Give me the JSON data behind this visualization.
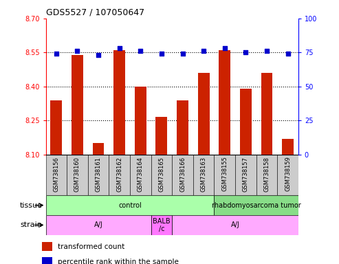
{
  "title": "GDS5527 / 107050647",
  "samples": [
    "GSM738156",
    "GSM738160",
    "GSM738161",
    "GSM738162",
    "GSM738164",
    "GSM738165",
    "GSM738166",
    "GSM738163",
    "GSM738155",
    "GSM738157",
    "GSM738158",
    "GSM738159"
  ],
  "bar_values": [
    8.34,
    8.54,
    8.15,
    8.56,
    8.4,
    8.265,
    8.34,
    8.46,
    8.56,
    8.39,
    8.46,
    8.17
  ],
  "dot_values": [
    74,
    76,
    73,
    78,
    76,
    74,
    74,
    76,
    78,
    75,
    76,
    74
  ],
  "ymin": 8.1,
  "ymax": 8.7,
  "y2min": 0,
  "y2max": 100,
  "yticks": [
    8.1,
    8.25,
    8.4,
    8.55,
    8.7
  ],
  "y2ticks": [
    0,
    25,
    50,
    75,
    100
  ],
  "bar_color": "#cc2200",
  "dot_color": "#0000cc",
  "bar_width": 0.55,
  "tissue_groups": [
    {
      "label": "control",
      "start": 0,
      "end": 8,
      "color": "#aaffaa"
    },
    {
      "label": "rhabdomyosarcoma tumor",
      "start": 8,
      "end": 12,
      "color": "#88dd88"
    }
  ],
  "strain_groups": [
    {
      "label": "A/J",
      "start": 0,
      "end": 5,
      "color": "#ffaaff"
    },
    {
      "label": "BALB\n/c",
      "start": 5,
      "end": 6,
      "color": "#ff77ff"
    },
    {
      "label": "A/J",
      "start": 6,
      "end": 12,
      "color": "#ffaaff"
    }
  ],
  "legend_items": [
    {
      "label": "transformed count",
      "color": "#cc2200"
    },
    {
      "label": "percentile rank within the sample",
      "color": "#0000cc"
    }
  ],
  "label_tissue": "tissue",
  "label_strain": "strain",
  "xtick_bg": "#cccccc",
  "plot_bg": "#ffffff",
  "spine_color": "#000000"
}
